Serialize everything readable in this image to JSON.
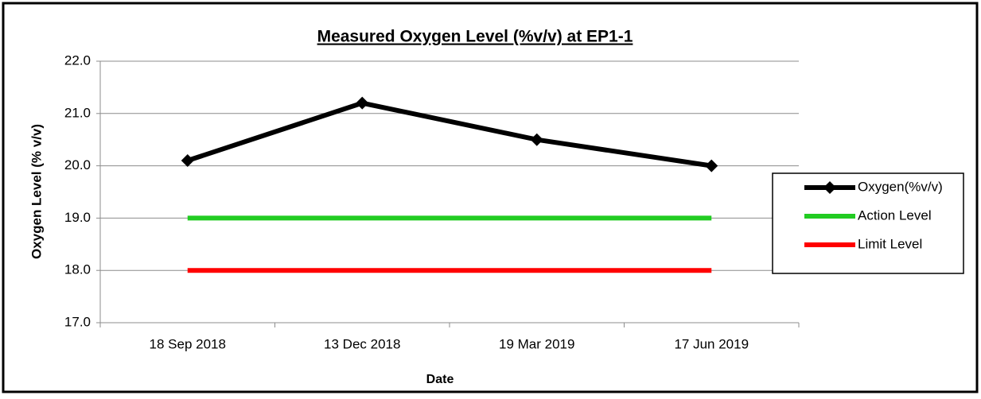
{
  "chart_data": {
    "type": "line",
    "title": "Measured Oxygen Level (%v/v) at EP1-1",
    "xlabel": "Date",
    "ylabel": "Oxygen Level (% v/v)",
    "categories": [
      "18 Sep 2018",
      "13 Dec 2018",
      "19 Mar 2019",
      "17 Jun 2019"
    ],
    "series": [
      {
        "name": "Oxygen(%v/v)",
        "color": "#000000",
        "values": [
          20.1,
          21.2,
          20.5,
          20.0
        ],
        "marker": "diamond"
      },
      {
        "name": "Action Level",
        "color": "#22cc22",
        "values": [
          19,
          19,
          19,
          19
        ]
      },
      {
        "name": "Limit Level",
        "color": "#ff0000",
        "values": [
          18,
          18,
          18,
          18
        ]
      }
    ],
    "ylim": [
      17,
      22
    ],
    "yticks": [
      {
        "value": 17,
        "label": "17.0"
      },
      {
        "value": 18,
        "label": "18.0"
      },
      {
        "value": 19,
        "label": "19.0"
      },
      {
        "value": 20,
        "label": "20.0"
      },
      {
        "value": 21,
        "label": "21.0"
      },
      {
        "value": 22,
        "label": "22.0"
      }
    ],
    "grid": true,
    "legend": "right"
  }
}
